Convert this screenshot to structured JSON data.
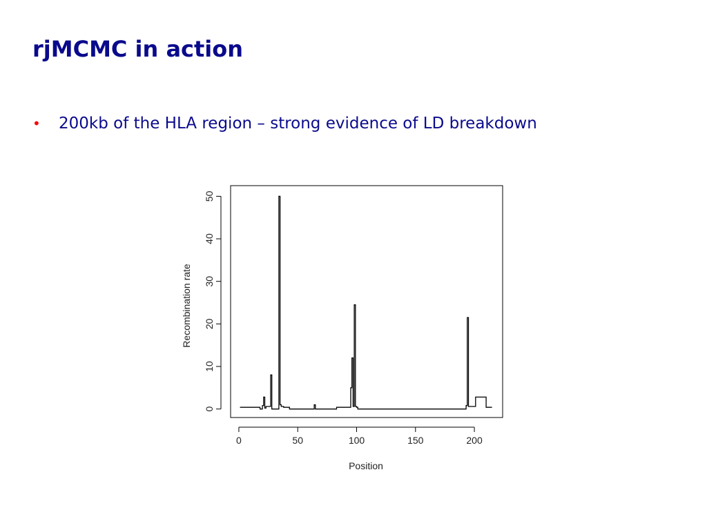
{
  "slide": {
    "title": "rjMCMC in action",
    "bullets": [
      "200kb of the HLA region – strong evidence of LD breakdown"
    ],
    "bullet_color": "#ff0000",
    "text_color": "#0a0a8c"
  },
  "chart_data": {
    "type": "line",
    "title": "",
    "xlabel": "Position",
    "ylabel": "Recombination rate",
    "xlim": [
      -7,
      224
    ],
    "ylim": [
      -2,
      52.5
    ],
    "xticks": [
      0,
      50,
      100,
      150,
      200
    ],
    "yticks": [
      0,
      10,
      20,
      30,
      40,
      50
    ],
    "grid": false,
    "line_color": "#000000",
    "series": [
      {
        "step": true,
        "x": [
          1,
          18,
          20,
          21,
          22,
          23,
          27,
          28,
          29,
          34,
          35,
          36,
          37,
          38,
          40,
          43,
          64,
          65,
          66,
          83,
          95,
          96,
          97,
          98,
          99,
          100,
          101,
          103,
          193,
          194,
          195,
          196,
          201,
          210,
          215
        ],
        "y": [
          0.4,
          0.0,
          0.8,
          2.8,
          0.2,
          0.6,
          8.0,
          0.0,
          0.0,
          50.0,
          1.0,
          0.6,
          0.6,
          0.4,
          0.4,
          0.0,
          1.0,
          0.0,
          0.0,
          0.4,
          5.0,
          12.0,
          0.6,
          24.5,
          0.6,
          0.4,
          0.0,
          0.0,
          0.8,
          21.5,
          0.6,
          0.6,
          2.8,
          0.4,
          0.4
        ]
      }
    ]
  }
}
